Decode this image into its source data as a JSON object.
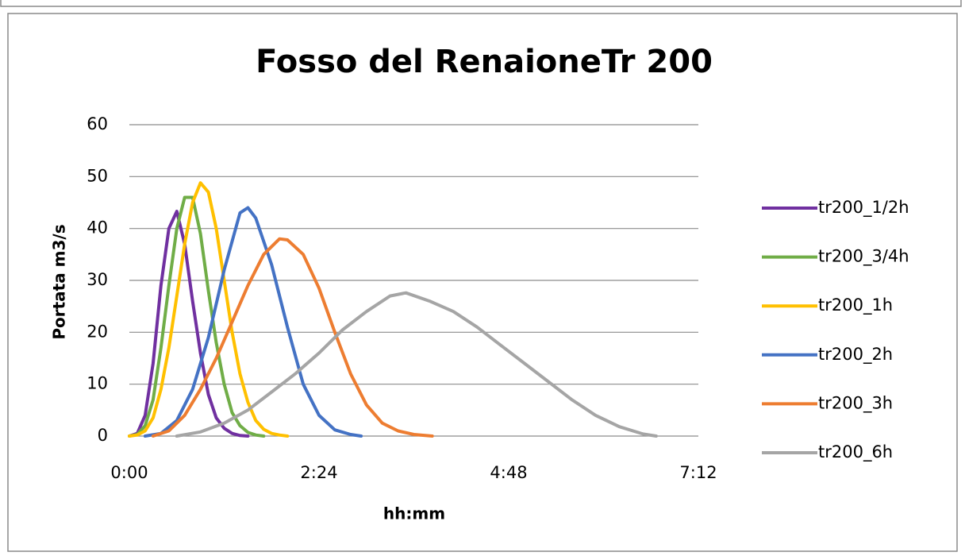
{
  "chart_data": {
    "type": "line",
    "title": "Fosso del RenaioneTr 200",
    "x_label": "hh:mm",
    "y_label": "Portata m3/s",
    "xlim": [
      0,
      432
    ],
    "xticks": [
      {
        "value": 0,
        "label": "0:00"
      },
      {
        "value": 144,
        "label": "2:24"
      },
      {
        "value": 288,
        "label": "4:48"
      },
      {
        "value": 432,
        "label": "7:12"
      }
    ],
    "ylim": [
      0,
      60
    ],
    "yticks": [
      0,
      10,
      20,
      30,
      40,
      50,
      60
    ],
    "grid": true,
    "legend": "right",
    "series": [
      {
        "name": "tr200_1/2h",
        "color": "#7030a0",
        "x": [
          0,
          6,
          12,
          18,
          24,
          30,
          36,
          42,
          48,
          54,
          60,
          66,
          72,
          78,
          84,
          90
        ],
        "values": [
          0,
          0.5,
          4,
          14,
          29,
          40,
          43.3,
          37,
          26,
          16,
          8,
          3.5,
          1.5,
          0.5,
          0.1,
          0
        ]
      },
      {
        "name": "tr200_3/4h",
        "color": "#70ad47",
        "x": [
          0,
          6,
          12,
          18,
          24,
          30,
          36,
          42,
          48,
          54,
          60,
          66,
          72,
          78,
          84,
          90,
          96,
          102
        ],
        "values": [
          0,
          0.3,
          2,
          7,
          17,
          29,
          40,
          46,
          46,
          39,
          28,
          18,
          10,
          4.5,
          2,
          0.7,
          0.2,
          0
        ]
      },
      {
        "name": "tr200_1h",
        "color": "#ffc000",
        "x": [
          0,
          6,
          12,
          18,
          24,
          30,
          36,
          42,
          48,
          54,
          60,
          66,
          72,
          78,
          84,
          90,
          96,
          102,
          108,
          114,
          120
        ],
        "values": [
          0,
          0.2,
          1,
          3.5,
          9,
          17,
          27,
          37,
          45,
          48.8,
          47,
          40,
          30,
          20,
          12,
          6.5,
          3,
          1.3,
          0.5,
          0.2,
          0
        ]
      },
      {
        "name": "tr200_2h",
        "color": "#4472c4",
        "x": [
          12,
          24,
          36,
          48,
          60,
          72,
          84,
          90,
          96,
          108,
          120,
          132,
          144,
          156,
          168,
          176
        ],
        "values": [
          0,
          0.5,
          3,
          9,
          19,
          32,
          43,
          44,
          42,
          33,
          21,
          10,
          4,
          1.2,
          0.3,
          0
        ]
      },
      {
        "name": "tr200_3h",
        "color": "#ed7d31",
        "x": [
          18,
          30,
          42,
          54,
          66,
          78,
          90,
          102,
          114,
          120,
          132,
          144,
          156,
          168,
          180,
          192,
          204,
          216,
          230
        ],
        "values": [
          0,
          1,
          4,
          9,
          15,
          22,
          29,
          35,
          38,
          37.8,
          35,
          28.5,
          20,
          12,
          6,
          2.5,
          1,
          0.3,
          0
        ]
      },
      {
        "name": "tr200_6h",
        "color": "#a5a5a5",
        "x": [
          36,
          54,
          72,
          90,
          108,
          126,
          144,
          162,
          180,
          198,
          210,
          228,
          246,
          264,
          282,
          300,
          318,
          336,
          354,
          372,
          390,
          400
        ],
        "values": [
          0,
          0.8,
          2.5,
          5,
          8.5,
          12,
          16,
          20.5,
          24,
          27,
          27.6,
          26,
          24,
          21,
          17.5,
          14,
          10.5,
          7,
          4,
          1.8,
          0.4,
          0
        ]
      }
    ]
  }
}
